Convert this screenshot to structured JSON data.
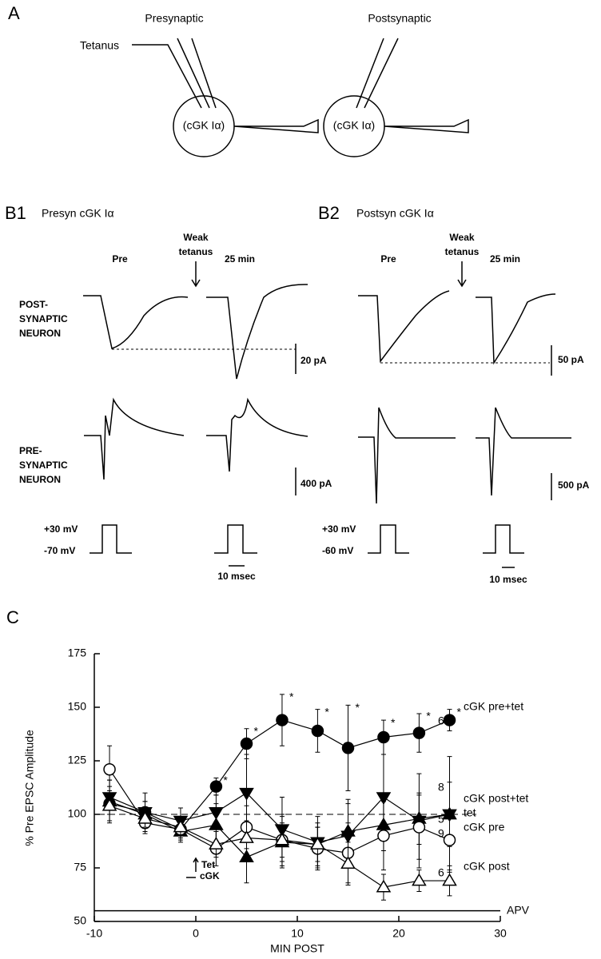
{
  "panel_a": {
    "label": "A",
    "presynaptic": "Presynaptic",
    "postsynaptic": "Postsynaptic",
    "tetanus": "Tetanus",
    "cell_1": "(cGK Iα)",
    "cell_2": "(cGK Iα)"
  },
  "panel_b": {
    "rows": {
      "post": [
        "POST-",
        "SYNAPTIC",
        "NEURON"
      ],
      "pre": [
        "PRE-",
        "SYNAPTIC",
        "NEURON"
      ]
    },
    "b1": {
      "label": "B1",
      "title": "Presyn cGK Iα",
      "before": "Pre",
      "stim": [
        "Weak",
        "tetanus"
      ],
      "after": "25 min",
      "post_scale": "20 pA",
      "pre_scale": "400 pA",
      "v_high": "+30 mV",
      "v_low": "-70 mV",
      "time_scale": "10 msec"
    },
    "b2": {
      "label": "B2",
      "title": "Postsyn cGK Iα",
      "before": "Pre",
      "stim": [
        "Weak",
        "tetanus"
      ],
      "after": "25 min",
      "post_scale": "50 pA",
      "pre_scale": "500 pA",
      "v_high": "+30 mV",
      "v_low": "-60 mV",
      "time_scale": "10 msec"
    }
  },
  "chart_data": {
    "type": "line",
    "panel_label": "C",
    "x_label": "MIN POST",
    "y_label": "% Pre EPSC Amplitude",
    "xlim": [
      -10,
      30
    ],
    "xticks": [
      -10,
      0,
      10,
      20,
      30
    ],
    "ylim": [
      50,
      175
    ],
    "yticks": [
      50,
      75,
      100,
      125,
      150,
      175
    ],
    "reference_line": 100,
    "apv_level": 55,
    "apv_label": "APV",
    "tet_label": "Tet",
    "cgk_label": "cGK",
    "x": [
      -8.5,
      -5,
      -1.5,
      2,
      5,
      8.5,
      12,
      15,
      18.5,
      22,
      25
    ],
    "series": [
      {
        "name": "cGK pre+tet",
        "n": "6",
        "marker": "circle",
        "filled": true,
        "values": [
          105,
          101,
          93,
          113,
          133,
          144,
          139,
          131,
          136,
          138,
          144
        ],
        "errors": [
          8,
          5,
          4,
          4,
          7,
          12,
          10,
          20,
          8,
          9,
          5
        ],
        "significance_marks": [
          null,
          null,
          null,
          "*",
          "*",
          "*",
          "*",
          "*",
          "*",
          "*",
          "*"
        ]
      },
      {
        "name": "cGK post+tet",
        "n": "8",
        "marker": "triangle-down",
        "filled": true,
        "values": [
          108,
          101,
          97,
          101,
          110,
          93,
          87,
          90,
          108,
          97,
          100
        ],
        "errors": [
          8,
          9,
          6,
          8,
          18,
          15,
          12,
          15,
          20,
          22,
          27
        ]
      },
      {
        "name": "tet",
        "n": "5",
        "marker": "triangle-up",
        "filled": true,
        "values": [
          106,
          100,
          92,
          95,
          80,
          87,
          86,
          92,
          95,
          98,
          100
        ],
        "errors": [
          10,
          6,
          5,
          10,
          12,
          12,
          10,
          15,
          12,
          12,
          15
        ]
      },
      {
        "name": "cGK pre",
        "n": "9",
        "marker": "circle",
        "filled": false,
        "values": [
          121,
          96,
          93,
          84,
          94,
          88,
          84,
          82,
          90,
          94,
          88
        ],
        "errors": [
          11,
          5,
          5,
          8,
          10,
          12,
          10,
          14,
          16,
          15,
          14
        ]
      },
      {
        "name": "cGK post",
        "n": "6",
        "marker": "triangle-up",
        "filled": false,
        "values": [
          104,
          98,
          94,
          86,
          89,
          88,
          86,
          77,
          66,
          69,
          69
        ],
        "errors": [
          7,
          4,
          4,
          6,
          8,
          8,
          8,
          10,
          6,
          5,
          7
        ]
      }
    ]
  }
}
